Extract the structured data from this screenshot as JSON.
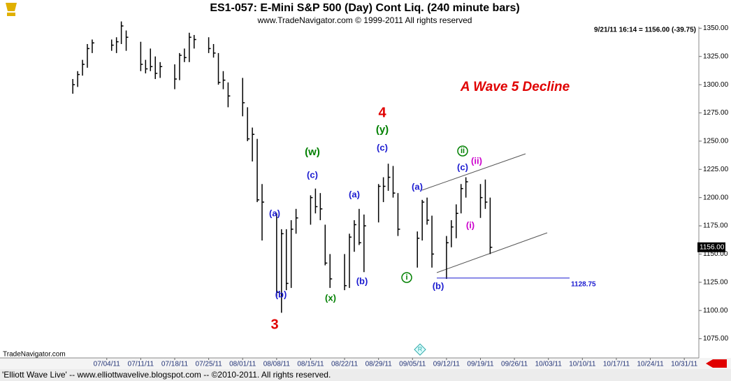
{
  "chart_data": {
    "type": "ohlc",
    "title": "ES1-057:  E-Mini S&P 500 (Day) Cont Liq.  (240 minute bars)",
    "subtitle": "www.TradeNavigator.com © 1999-2011 All rights reserved",
    "info": "9/21/11 16:14 = 1156.00 (-39.75)",
    "watermark": "TradeNavigator.com",
    "footer": "'Elliott Wave Live' -- www.elliottwavelive.blogspot.com -- ©2010-2011. All rights reserved.",
    "color": "#000000",
    "x": [
      "06/27/11",
      "06/28/11",
      "06/29/11",
      "06/30/11",
      "07/01/11",
      "07/05/11",
      "07/06/11",
      "07/07/11",
      "07/08/11",
      "07/11/11",
      "07/12/11",
      "07/13/11",
      "07/14/11",
      "07/15/11",
      "07/18/11",
      "07/19/11",
      "07/20/11",
      "07/21/11",
      "07/22/11",
      "07/25/11",
      "07/26/11",
      "07/27/11",
      "07/28/11",
      "07/29/11",
      "08/01/11",
      "08/02/11",
      "08/03/11",
      "08/04/11",
      "08/05/11",
      "08/08/11",
      "08/09/11",
      "08/10/11",
      "08/11/11",
      "08/12/11",
      "08/15/11",
      "08/16/11",
      "08/17/11",
      "08/18/11",
      "08/19/11",
      "08/22/11",
      "08/23/11",
      "08/24/11",
      "08/25/11",
      "08/26/11",
      "08/29/11",
      "08/30/11",
      "08/31/11",
      "09/01/11",
      "09/02/11",
      "09/06/11",
      "09/07/11",
      "09/08/11",
      "09/09/11",
      "09/12/11",
      "09/13/11",
      "09/14/11",
      "09/15/11",
      "09/16/11",
      "09/19/11",
      "09/20/11",
      "09/21/11"
    ],
    "high": [
      1305,
      1312,
      1322,
      1336,
      1340,
      1340,
      1342,
      1356,
      1348,
      1338,
      1322,
      1332,
      1325,
      1320,
      1318,
      1328,
      1332,
      1346,
      1344,
      1342,
      1336,
      1328,
      1312,
      1302,
      1306,
      1280,
      1262,
      1252,
      1212,
      1186,
      1172,
      1172,
      1180,
      1190,
      1202,
      1208,
      1204,
      1176,
      1150,
      1150,
      1168,
      1180,
      1190,
      1185,
      1212,
      1218,
      1230,
      1228,
      1204,
      1170,
      1198,
      1200,
      1184,
      1166,
      1180,
      1194,
      1212,
      1218,
      1212,
      1216,
      1200
    ],
    "low": [
      1292,
      1298,
      1308,
      1315,
      1328,
      1330,
      1328,
      1336,
      1330,
      1312,
      1310,
      1312,
      1305,
      1306,
      1296,
      1304,
      1320,
      1320,
      1332,
      1328,
      1324,
      1300,
      1296,
      1280,
      1272,
      1250,
      1232,
      1196,
      1162,
      1112,
      1098,
      1118,
      1120,
      1168,
      1176,
      1186,
      1180,
      1140,
      1120,
      1118,
      1120,
      1152,
      1158,
      1134,
      1178,
      1196,
      1206,
      1200,
      1166,
      1138,
      1162,
      1176,
      1138,
      1128,
      1156,
      1164,
      1186,
      1200,
      1182,
      1190,
      1150
    ],
    "close": [
      1300,
      1309,
      1318,
      1332,
      1337,
      1335,
      1338,
      1352,
      1342,
      1318,
      1314,
      1316,
      1310,
      1316,
      1305,
      1326,
      1324,
      1342,
      1340,
      1332,
      1328,
      1302,
      1304,
      1290,
      1284,
      1252,
      1256,
      1198,
      1196,
      1116,
      1168,
      1124,
      1172,
      1182,
      1200,
      1192,
      1190,
      1142,
      1128,
      1122,
      1165,
      1176,
      1160,
      1175,
      1210,
      1210,
      1218,
      1204,
      1172,
      1164,
      1196,
      1180,
      1150,
      1160,
      1174,
      1186,
      1208,
      1214,
      1200,
      1196,
      1156
    ],
    "xlim": [
      "06/12/11",
      "11/03/11"
    ],
    "xticks": [
      "07/04/11",
      "07/11/11",
      "07/18/11",
      "07/25/11",
      "08/01/11",
      "08/08/11",
      "08/15/11",
      "08/22/11",
      "08/29/11",
      "09/05/11",
      "09/12/11",
      "09/19/11",
      "09/26/11",
      "10/03/11",
      "10/10/11",
      "10/17/11",
      "10/24/11",
      "10/31/11"
    ],
    "ylim": [
      1058,
      1359
    ],
    "yticks": [
      {
        "value": 1075,
        "label": "1075.00"
      },
      {
        "value": 1100,
        "label": "1100.00"
      },
      {
        "value": 1125,
        "label": "1125.00"
      },
      {
        "value": 1150,
        "label": "1150.00"
      },
      {
        "value": 1175,
        "label": "1175.00"
      },
      {
        "value": 1200,
        "label": "1200.00"
      },
      {
        "value": 1225,
        "label": "1225.00"
      },
      {
        "value": 1250,
        "label": "1250.00"
      },
      {
        "value": 1275,
        "label": "1275.00"
      },
      {
        "value": 1300,
        "label": "1300.00"
      },
      {
        "value": 1325,
        "label": "1325.00"
      },
      {
        "value": 1350,
        "label": "1350.00"
      }
    ],
    "support_level": 1128.75,
    "last_price": {
      "value": 1156,
      "label": "1156.00"
    },
    "annotations": [
      {
        "text": "A Wave 5 Decline",
        "color": "#e00000"
      },
      {
        "text": "4",
        "color": "#e00000"
      },
      {
        "text": "(y)",
        "color": "#008000"
      },
      {
        "text": "(c)",
        "color": "#1a1ad0"
      },
      {
        "text": "(w)",
        "color": "#008000"
      },
      {
        "text": "(c)",
        "color": "#1a1ad0"
      },
      {
        "text": "(a)",
        "color": "#1a1ad0"
      },
      {
        "text": "(b)",
        "color": "#1a1ad0"
      },
      {
        "text": "3",
        "color": "#e00000"
      },
      {
        "text": "(x)",
        "color": "#008000"
      },
      {
        "text": "(a)",
        "color": "#1a1ad0"
      },
      {
        "text": "(b)",
        "color": "#1a1ad0"
      },
      {
        "text": "(a)",
        "color": "#1a1ad0"
      },
      {
        "text": "i",
        "color": "#008000"
      },
      {
        "text": "(b)",
        "color": "#1a1ad0"
      },
      {
        "text": "(c)",
        "color": "#1a1ad0"
      },
      {
        "text": "ii",
        "color": "#008000"
      },
      {
        "text": "(ii)",
        "color": "#cc00cc"
      },
      {
        "text": "(i)",
        "color": "#cc00cc"
      }
    ]
  }
}
